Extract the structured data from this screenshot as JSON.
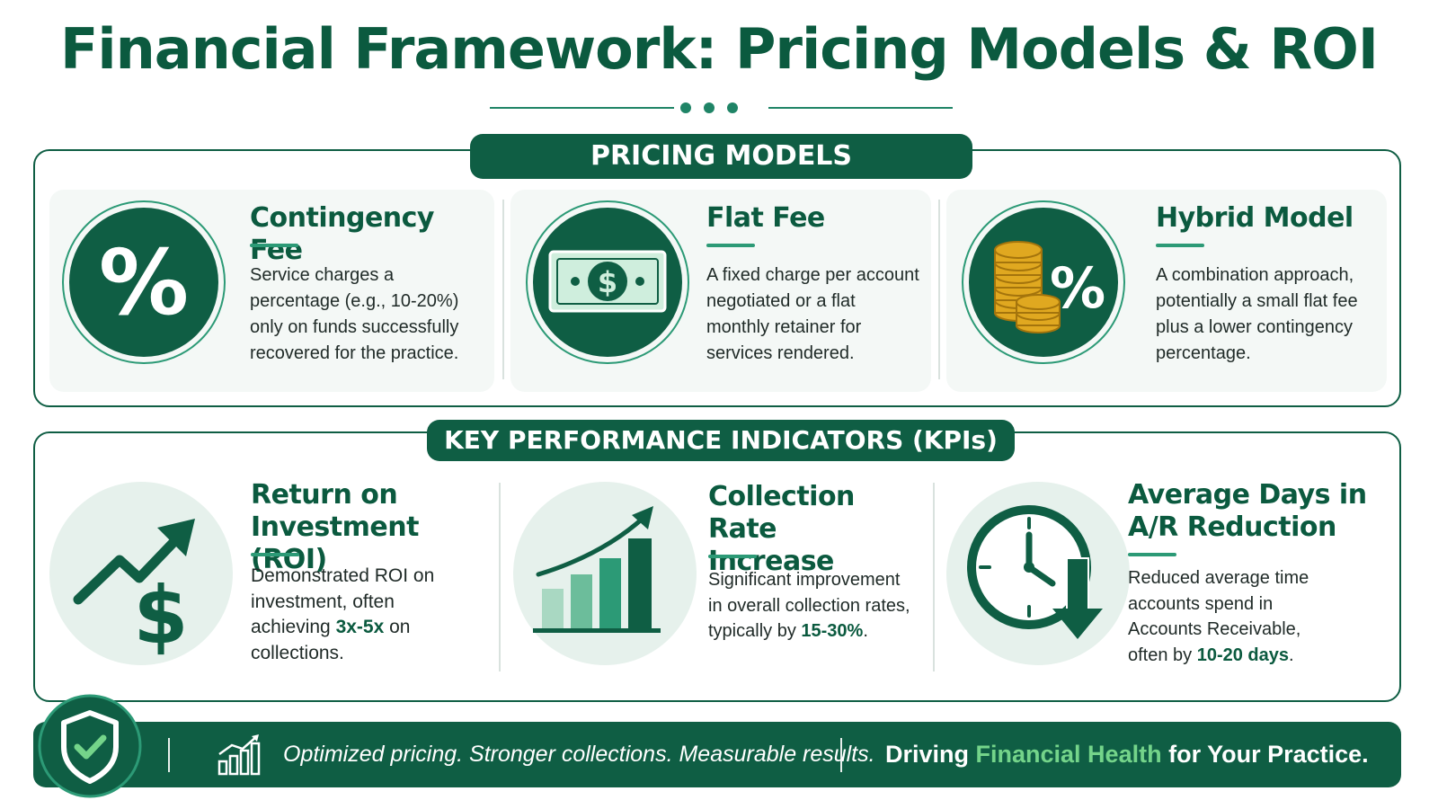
{
  "title": "Financial Framework: Pricing Models & ROI",
  "sections": {
    "pricing_label": "PRICING MODELS",
    "kpi_label": "KEY PERFORMANCE INDICATORS (KPIs)"
  },
  "pricing": [
    {
      "name": "Contingency Fee",
      "icon": "percent-icon",
      "desc_lines": [
        "Service charges a",
        "percentage (e.g., 10-20%)",
        "only on funds successfully",
        "recovered for the practice."
      ]
    },
    {
      "name": "Flat Fee",
      "icon": "dollar-bill-icon",
      "desc_lines": [
        "A fixed charge per account",
        "negotiated or a flat",
        "monthly retainer for",
        "services rendered."
      ]
    },
    {
      "name": "Hybrid Model",
      "icon": "coins-percent-icon",
      "desc_lines": [
        "A combination approach,",
        "potentially a small flat fee",
        "plus a lower contingency",
        "percentage."
      ]
    }
  ],
  "kpis": [
    {
      "name_lines": [
        "Return on Investment",
        "(ROI)"
      ],
      "icon": "trend-dollar-icon",
      "desc_lines": [
        "Demonstrated ROI on",
        "investment, often"
      ],
      "desc_pre": "achieving ",
      "desc_highlight": "3x-5x",
      "desc_post": " on",
      "desc_tail": "collections."
    },
    {
      "name_lines": [
        "Collection Rate",
        "Increase"
      ],
      "icon": "bar-growth-icon",
      "desc_lines": [
        "Significant improvement",
        "in overall collection rates,"
      ],
      "desc_pre": "typically by ",
      "desc_highlight": "15-30%",
      "desc_post": ".",
      "desc_tail": ""
    },
    {
      "name_lines": [
        "Average Days in",
        "A/R Reduction"
      ],
      "icon": "clock-down-icon",
      "desc_lines": [
        "Reduced average time",
        "accounts spend in",
        "Accounts Receivable,"
      ],
      "desc_pre": "often by ",
      "desc_highlight": "10-20 days",
      "desc_post": ".",
      "desc_tail": ""
    }
  ],
  "footer": {
    "tagline": "Optimized pricing. Stronger collections. Measurable results.",
    "slogan_pre": "Driving ",
    "slogan_accent": "Financial Health",
    "slogan_post": " for Your Practice."
  },
  "colors": {
    "primary": "#0f5e44",
    "accent": "#2c9a76",
    "highlight": "#74d48a",
    "gold": "#e0a820"
  }
}
